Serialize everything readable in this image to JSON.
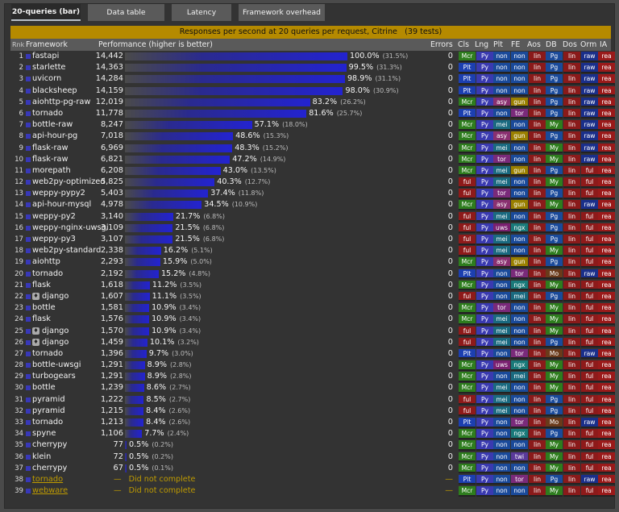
{
  "tabs": [
    "20-queries (bar)",
    "Data table",
    "Latency",
    "Framework overhead"
  ],
  "active_tab": 0,
  "banner": {
    "title": "Responses per second at 20 queries per request, Citrine",
    "tests": "(39 tests)"
  },
  "headers": {
    "rank": "Rnk",
    "framework": "Framework",
    "performance": "Performance (higher is better)",
    "errors": "Errors",
    "cls": "Cls",
    "lng": "Lng",
    "plt": "Plt",
    "fe": "FE",
    "aos": "Aos",
    "db": "DB",
    "dos": "Dos",
    "orm": "Orm",
    "ia": "IA"
  },
  "colors": {
    "banner": "#b58a00",
    "bar": "#2323d0",
    "dnc": "#bf9b00",
    "Mcr": "#2e7d1e",
    "Plt": "#1c3fb0",
    "ful": "#8e1a1a",
    "Py": "#3a3ab0",
    "non": "#1a4a9a",
    "asy": "#8a3070",
    "mei": "#1a6a80",
    "gun": "#9a8000",
    "tor": "#7a2a7a",
    "uws": "#7a2070",
    "twi": "#5a3a9a",
    "ngx": "#1a7a7a",
    "lin": "#8a1a1a",
    "Pg": "#1a4a9a",
    "My": "#2e7d1e",
    "Mo": "#6a3a1a",
    "raw": "#1a2f8a",
    "rea": "#9a1a1a"
  },
  "rows": [
    {
      "rank": "1",
      "name": "fastapi",
      "rps": "14,442",
      "pct": 100.0,
      "pct_text": "100.0%",
      "abs": "(31.5%)",
      "err": "0",
      "cls": "Mcr",
      "lng": "Py",
      "plt": "non",
      "fe": "non",
      "aos": "lin",
      "db": "Pg",
      "dos": "lin",
      "orm": "raw",
      "ia": "rea"
    },
    {
      "rank": "2",
      "name": "starlette",
      "rps": "14,363",
      "pct": 99.5,
      "pct_text": "99.5%",
      "abs": "(31.3%)",
      "err": "0",
      "cls": "Plt",
      "lng": "Py",
      "plt": "non",
      "fe": "non",
      "aos": "lin",
      "db": "Pg",
      "dos": "lin",
      "orm": "raw",
      "ia": "rea"
    },
    {
      "rank": "3",
      "name": "uvicorn",
      "rps": "14,284",
      "pct": 98.9,
      "pct_text": "98.9%",
      "abs": "(31.1%)",
      "err": "0",
      "cls": "Plt",
      "lng": "Py",
      "plt": "non",
      "fe": "non",
      "aos": "lin",
      "db": "Pg",
      "dos": "lin",
      "orm": "raw",
      "ia": "rea"
    },
    {
      "rank": "4",
      "name": "blacksheep",
      "rps": "14,159",
      "pct": 98.0,
      "pct_text": "98.0%",
      "abs": "(30.9%)",
      "err": "0",
      "cls": "Plt",
      "lng": "Py",
      "plt": "non",
      "fe": "non",
      "aos": "lin",
      "db": "Pg",
      "dos": "lin",
      "orm": "raw",
      "ia": "rea"
    },
    {
      "rank": "5",
      "name": "aiohttp-pg-raw",
      "rps": "12,019",
      "pct": 83.2,
      "pct_text": "83.2%",
      "abs": "(26.2%)",
      "err": "0",
      "cls": "Mcr",
      "lng": "Py",
      "plt": "asy",
      "fe": "gun",
      "aos": "lin",
      "db": "Pg",
      "dos": "lin",
      "orm": "raw",
      "ia": "rea"
    },
    {
      "rank": "6",
      "name": "tornado",
      "rps": "11,778",
      "pct": 81.6,
      "pct_text": "81.6%",
      "abs": "(25.7%)",
      "err": "0",
      "cls": "Plt",
      "lng": "Py",
      "plt": "non",
      "fe": "tor",
      "aos": "lin",
      "db": "Pg",
      "dos": "lin",
      "orm": "raw",
      "ia": "rea"
    },
    {
      "rank": "7",
      "name": "bottle-raw",
      "rps": "8,247",
      "pct": 57.1,
      "pct_text": "57.1%",
      "abs": "(18.0%)",
      "err": "0",
      "cls": "Mcr",
      "lng": "Py",
      "plt": "mei",
      "fe": "non",
      "aos": "lin",
      "db": "My",
      "dos": "lin",
      "orm": "raw",
      "ia": "rea"
    },
    {
      "rank": "8",
      "name": "api-hour-pg",
      "rps": "7,018",
      "pct": 48.6,
      "pct_text": "48.6%",
      "abs": "(15.3%)",
      "err": "0",
      "cls": "Mcr",
      "lng": "Py",
      "plt": "asy",
      "fe": "gun",
      "aos": "lin",
      "db": "Pg",
      "dos": "lin",
      "orm": "raw",
      "ia": "rea"
    },
    {
      "rank": "9",
      "name": "flask-raw",
      "rps": "6,969",
      "pct": 48.3,
      "pct_text": "48.3%",
      "abs": "(15.2%)",
      "err": "0",
      "cls": "Mcr",
      "lng": "Py",
      "plt": "mei",
      "fe": "non",
      "aos": "lin",
      "db": "My",
      "dos": "lin",
      "orm": "raw",
      "ia": "rea"
    },
    {
      "rank": "10",
      "name": "flask-raw",
      "rps": "6,821",
      "pct": 47.2,
      "pct_text": "47.2%",
      "abs": "(14.9%)",
      "err": "0",
      "cls": "Mcr",
      "lng": "Py",
      "plt": "tor",
      "fe": "non",
      "aos": "lin",
      "db": "My",
      "dos": "lin",
      "orm": "raw",
      "ia": "rea"
    },
    {
      "rank": "11",
      "name": "morepath",
      "rps": "6,208",
      "pct": 43.0,
      "pct_text": "43.0%",
      "abs": "(13.5%)",
      "err": "0",
      "cls": "Mcr",
      "lng": "Py",
      "plt": "mei",
      "fe": "gun",
      "aos": "lin",
      "db": "Pg",
      "dos": "lin",
      "orm": "ful",
      "ia": "rea"
    },
    {
      "rank": "12",
      "name": "web2py-optimized",
      "rps": "5,825",
      "pct": 40.3,
      "pct_text": "40.3%",
      "abs": "(12.7%)",
      "err": "0",
      "cls": "ful",
      "lng": "Py",
      "plt": "mei",
      "fe": "non",
      "aos": "lin",
      "db": "My",
      "dos": "lin",
      "orm": "ful",
      "ia": "rea"
    },
    {
      "rank": "13",
      "name": "weppy-pypy2",
      "rps": "5,403",
      "pct": 37.4,
      "pct_text": "37.4%",
      "abs": "(11.8%)",
      "err": "0",
      "cls": "ful",
      "lng": "Py",
      "plt": "tor",
      "fe": "non",
      "aos": "lin",
      "db": "Pg",
      "dos": "lin",
      "orm": "ful",
      "ia": "rea"
    },
    {
      "rank": "14",
      "name": "api-hour-mysql",
      "rps": "4,978",
      "pct": 34.5,
      "pct_text": "34.5%",
      "abs": "(10.9%)",
      "err": "0",
      "cls": "Mcr",
      "lng": "Py",
      "plt": "asy",
      "fe": "gun",
      "aos": "lin",
      "db": "My",
      "dos": "lin",
      "orm": "raw",
      "ia": "rea"
    },
    {
      "rank": "15",
      "name": "weppy-py2",
      "rps": "3,140",
      "pct": 21.7,
      "pct_text": "21.7%",
      "abs": "(6.8%)",
      "err": "0",
      "cls": "ful",
      "lng": "Py",
      "plt": "mei",
      "fe": "non",
      "aos": "lin",
      "db": "Pg",
      "dos": "lin",
      "orm": "ful",
      "ia": "rea"
    },
    {
      "rank": "16",
      "name": "weppy-nginx-uwsgi",
      "rps": "3,109",
      "pct": 21.5,
      "pct_text": "21.5%",
      "abs": "(6.8%)",
      "err": "0",
      "cls": "ful",
      "lng": "Py",
      "plt": "uws",
      "fe": "ngx",
      "aos": "lin",
      "db": "Pg",
      "dos": "lin",
      "orm": "ful",
      "ia": "rea"
    },
    {
      "rank": "17",
      "name": "weppy-py3",
      "rps": "3,107",
      "pct": 21.5,
      "pct_text": "21.5%",
      "abs": "(6.8%)",
      "err": "0",
      "cls": "ful",
      "lng": "Py",
      "plt": "mei",
      "fe": "non",
      "aos": "lin",
      "db": "Pg",
      "dos": "lin",
      "orm": "ful",
      "ia": "rea"
    },
    {
      "rank": "18",
      "name": "web2py-standard",
      "rps": "2,338",
      "pct": 16.2,
      "pct_text": "16.2%",
      "abs": "(5.1%)",
      "err": "0",
      "cls": "ful",
      "lng": "Py",
      "plt": "mei",
      "fe": "non",
      "aos": "lin",
      "db": "My",
      "dos": "lin",
      "orm": "ful",
      "ia": "rea"
    },
    {
      "rank": "19",
      "name": "aiohttp",
      "rps": "2,293",
      "pct": 15.9,
      "pct_text": "15.9%",
      "abs": "(5.0%)",
      "err": "0",
      "cls": "Mcr",
      "lng": "Py",
      "plt": "asy",
      "fe": "gun",
      "aos": "lin",
      "db": "Pg",
      "dos": "lin",
      "orm": "ful",
      "ia": "rea"
    },
    {
      "rank": "20",
      "name": "tornado",
      "rps": "2,192",
      "pct": 15.2,
      "pct_text": "15.2%",
      "abs": "(4.8%)",
      "err": "0",
      "cls": "Plt",
      "lng": "Py",
      "plt": "non",
      "fe": "tor",
      "aos": "lin",
      "db": "Mo",
      "dos": "lin",
      "orm": "raw",
      "ia": "rea"
    },
    {
      "rank": "21",
      "name": "flask",
      "rps": "1,618",
      "pct": 11.2,
      "pct_text": "11.2%",
      "abs": "(3.5%)",
      "err": "0",
      "cls": "Mcr",
      "lng": "Py",
      "plt": "non",
      "fe": "ngx",
      "aos": "lin",
      "db": "My",
      "dos": "lin",
      "orm": "ful",
      "ia": "rea"
    },
    {
      "rank": "22",
      "name": "django",
      "rps": "1,607",
      "pct": 11.1,
      "pct_text": "11.1%",
      "abs": "(3.5%)",
      "err": "0",
      "dj": true,
      "cls": "ful",
      "lng": "Py",
      "plt": "non",
      "fe": "mei",
      "aos": "lin",
      "db": "Pg",
      "dos": "lin",
      "orm": "ful",
      "ia": "rea"
    },
    {
      "rank": "23",
      "name": "bottle",
      "rps": "1,581",
      "pct": 10.9,
      "pct_text": "10.9%",
      "abs": "(3.4%)",
      "err": "0",
      "cls": "Mcr",
      "lng": "Py",
      "plt": "tor",
      "fe": "non",
      "aos": "lin",
      "db": "My",
      "dos": "lin",
      "orm": "ful",
      "ia": "rea"
    },
    {
      "rank": "24",
      "name": "flask",
      "rps": "1,576",
      "pct": 10.9,
      "pct_text": "10.9%",
      "abs": "(3.4%)",
      "err": "0",
      "cls": "Mcr",
      "lng": "Py",
      "plt": "mei",
      "fe": "non",
      "aos": "lin",
      "db": "My",
      "dos": "lin",
      "orm": "ful",
      "ia": "rea"
    },
    {
      "rank": "25",
      "name": "django",
      "rps": "1,570",
      "pct": 10.9,
      "pct_text": "10.9%",
      "abs": "(3.4%)",
      "err": "0",
      "dj": true,
      "cls": "ful",
      "lng": "Py",
      "plt": "mei",
      "fe": "non",
      "aos": "lin",
      "db": "My",
      "dos": "lin",
      "orm": "ful",
      "ia": "rea"
    },
    {
      "rank": "26",
      "name": "django",
      "rps": "1,459",
      "pct": 10.1,
      "pct_text": "10.1%",
      "abs": "(3.2%)",
      "err": "0",
      "dj": true,
      "cls": "ful",
      "lng": "Py",
      "plt": "mei",
      "fe": "non",
      "aos": "lin",
      "db": "Pg",
      "dos": "lin",
      "orm": "ful",
      "ia": "rea"
    },
    {
      "rank": "27",
      "name": "tornado",
      "rps": "1,396",
      "pct": 9.7,
      "pct_text": "9.7%",
      "abs": "(3.0%)",
      "err": "0",
      "cls": "Plt",
      "lng": "Py",
      "plt": "non",
      "fe": "tor",
      "aos": "lin",
      "db": "Mo",
      "dos": "lin",
      "orm": "raw",
      "ia": "rea"
    },
    {
      "rank": "28",
      "name": "bottle-uwsgi",
      "rps": "1,291",
      "pct": 8.9,
      "pct_text": "8.9%",
      "abs": "(2.8%)",
      "err": "0",
      "cls": "Mcr",
      "lng": "Py",
      "plt": "uws",
      "fe": "ngx",
      "aos": "lin",
      "db": "My",
      "dos": "lin",
      "orm": "ful",
      "ia": "rea"
    },
    {
      "rank": "29",
      "name": "turbogears",
      "rps": "1,291",
      "pct": 8.9,
      "pct_text": "8.9%",
      "abs": "(2.8%)",
      "err": "0",
      "cls": "Mcr",
      "lng": "Py",
      "plt": "non",
      "fe": "mei",
      "aos": "lin",
      "db": "My",
      "dos": "lin",
      "orm": "ful",
      "ia": "rea"
    },
    {
      "rank": "30",
      "name": "bottle",
      "rps": "1,239",
      "pct": 8.6,
      "pct_text": "8.6%",
      "abs": "(2.7%)",
      "err": "0",
      "cls": "Mcr",
      "lng": "Py",
      "plt": "mei",
      "fe": "non",
      "aos": "lin",
      "db": "My",
      "dos": "lin",
      "orm": "ful",
      "ia": "rea"
    },
    {
      "rank": "31",
      "name": "pyramid",
      "rps": "1,222",
      "pct": 8.5,
      "pct_text": "8.5%",
      "abs": "(2.7%)",
      "err": "0",
      "cls": "ful",
      "lng": "Py",
      "plt": "mei",
      "fe": "non",
      "aos": "lin",
      "db": "Pg",
      "dos": "lin",
      "orm": "ful",
      "ia": "rea"
    },
    {
      "rank": "32",
      "name": "pyramid",
      "rps": "1,215",
      "pct": 8.4,
      "pct_text": "8.4%",
      "abs": "(2.6%)",
      "err": "0",
      "cls": "ful",
      "lng": "Py",
      "plt": "mei",
      "fe": "non",
      "aos": "lin",
      "db": "Pg",
      "dos": "lin",
      "orm": "ful",
      "ia": "rea"
    },
    {
      "rank": "33",
      "name": "tornado",
      "rps": "1,213",
      "pct": 8.4,
      "pct_text": "8.4%",
      "abs": "(2.6%)",
      "err": "0",
      "cls": "Plt",
      "lng": "Py",
      "plt": "non",
      "fe": "tor",
      "aos": "lin",
      "db": "Mo",
      "dos": "lin",
      "orm": "raw",
      "ia": "rea"
    },
    {
      "rank": "34",
      "name": "spyne",
      "rps": "1,106",
      "pct": 7.7,
      "pct_text": "7.7%",
      "abs": "(2.4%)",
      "err": "0",
      "cls": "Mcr",
      "lng": "Py",
      "plt": "non",
      "fe": "ngx",
      "aos": "lin",
      "db": "Pg",
      "dos": "lin",
      "orm": "ful",
      "ia": "rea"
    },
    {
      "rank": "35",
      "name": "cherrypy",
      "rps": "77",
      "pct": 0.5,
      "pct_text": "0.5%",
      "abs": "(0.2%)",
      "err": "0",
      "cls": "Mcr",
      "lng": "Py",
      "plt": "non",
      "fe": "non",
      "aos": "lin",
      "db": "My",
      "dos": "lin",
      "orm": "ful",
      "ia": "rea"
    },
    {
      "rank": "36",
      "name": "klein",
      "rps": "72",
      "pct": 0.5,
      "pct_text": "0.5%",
      "abs": "(0.2%)",
      "err": "0",
      "cls": "Mcr",
      "lng": "Py",
      "plt": "non",
      "fe": "twi",
      "aos": "lin",
      "db": "My",
      "dos": "lin",
      "orm": "ful",
      "ia": "rea"
    },
    {
      "rank": "37",
      "name": "cherrypy",
      "rps": "67",
      "pct": 0.5,
      "pct_text": "0.5%",
      "abs": "(0.1%)",
      "err": "0",
      "cls": "Mcr",
      "lng": "Py",
      "plt": "non",
      "fe": "non",
      "aos": "lin",
      "db": "My",
      "dos": "lin",
      "orm": "ful",
      "ia": "rea"
    },
    {
      "rank": "38",
      "name": "tornado",
      "rps": "—",
      "dnc": "Did not complete",
      "err": "—",
      "cls": "Plt",
      "lng": "Py",
      "plt": "non",
      "fe": "tor",
      "aos": "lin",
      "db": "Pg",
      "dos": "lin",
      "orm": "raw",
      "ia": "rea"
    },
    {
      "rank": "39",
      "name": "webware",
      "rps": "—",
      "dnc": "Did not complete",
      "err": "—",
      "cls": "Mcr",
      "lng": "Py",
      "plt": "non",
      "fe": "non",
      "aos": "lin",
      "db": "My",
      "dos": "lin",
      "orm": "ful",
      "ia": "rea"
    }
  ]
}
